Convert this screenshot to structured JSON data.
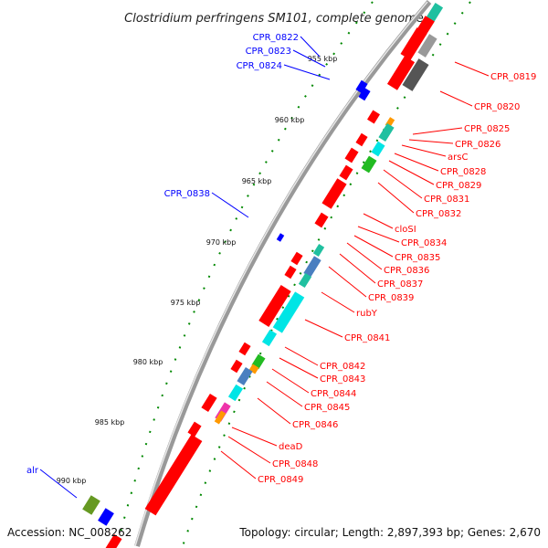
{
  "title": "Clostridium perfringens SM101, complete genome",
  "accession": "Accession: NC_008262",
  "topology": "Topology: circular; Length: 2,897,393 bp; Genes: 2,670",
  "colors": {
    "forward": "#ff0000",
    "reverse": "#0000ff",
    "cyan": "#00e5e5",
    "teal": "#20c0a0",
    "green": "#22bb22",
    "olive": "#669922",
    "gray": "#999999",
    "dark_gray": "#555555",
    "orange": "#ff9900",
    "steel": "#4a7fc0",
    "magenta": "#ee33aa",
    "backbone": "#888888",
    "tick": "#008800"
  },
  "scale_labels": [
    "955 kbp",
    "960 kbp",
    "965 kbp",
    "970 kbp",
    "975 kbp",
    "980 kbp",
    "985 kbp",
    "990 kbp"
  ],
  "labels": {
    "forward": [
      "CPR_0819",
      "CPR_0820",
      "CPR_0825",
      "CPR_0826",
      "arsC",
      "CPR_0828",
      "CPR_0829",
      "CPR_0831",
      "CPR_0832",
      "cloSI",
      "CPR_0834",
      "CPR_0835",
      "CPR_0836",
      "CPR_0837",
      "CPR_0839",
      "rubY",
      "CPR_0841",
      "CPR_0842",
      "CPR_0843",
      "CPR_0844",
      "CPR_0845",
      "CPR_0846",
      "deaD",
      "CPR_0848",
      "CPR_0849"
    ],
    "reverse": [
      "CPR_0822",
      "CPR_0823",
      "CPR_0824",
      "CPR_0838",
      "alr"
    ]
  }
}
